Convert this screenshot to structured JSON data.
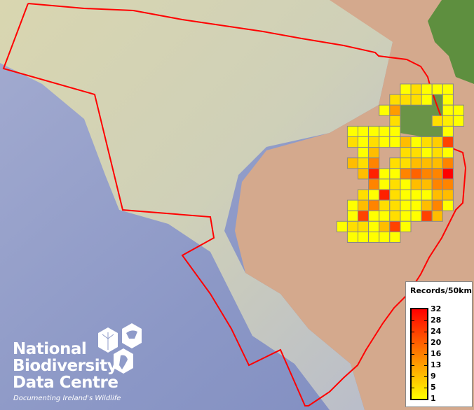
{
  "map": {
    "colors": {
      "ocean_deep": "#8f9bc9",
      "shelf": "#d9d6b4",
      "land": "#d4a98d",
      "scotland": "#5e8f3f",
      "boundary": "#ff0000",
      "grid_border": "#888888",
      "low": "#ffff00",
      "high": "#ff0000"
    },
    "grid_records": [
      [
        0,
        0,
        0,
        0,
        0,
        0,
        1,
        5,
        1,
        1,
        1,
        0
      ],
      [
        0,
        0,
        0,
        0,
        0,
        5,
        5,
        5,
        1,
        0,
        1,
        0
      ],
      [
        0,
        0,
        0,
        0,
        1,
        13,
        0,
        0,
        0,
        0,
        1,
        1
      ],
      [
        0,
        0,
        0,
        0,
        0,
        5,
        0,
        0,
        0,
        5,
        3,
        1
      ],
      [
        0,
        1,
        1,
        1,
        1,
        1,
        0,
        0,
        0,
        0,
        1,
        0
      ],
      [
        0,
        5,
        1,
        5,
        1,
        1,
        9,
        1,
        5,
        7,
        24,
        0
      ],
      [
        0,
        0,
        1,
        9,
        0,
        0,
        5,
        5,
        1,
        5,
        1,
        0
      ],
      [
        0,
        9,
        5,
        16,
        0,
        5,
        5,
        9,
        9,
        9,
        16,
        0
      ],
      [
        0,
        0,
        9,
        28,
        1,
        1,
        16,
        20,
        16,
        16,
        32,
        0
      ],
      [
        0,
        0,
        0,
        16,
        1,
        5,
        1,
        9,
        9,
        16,
        16,
        0
      ],
      [
        0,
        0,
        5,
        1,
        28,
        5,
        1,
        1,
        1,
        9,
        9,
        0
      ],
      [
        0,
        1,
        9,
        16,
        5,
        5,
        1,
        1,
        9,
        16,
        1,
        0
      ],
      [
        0,
        1,
        24,
        1,
        1,
        5,
        1,
        1,
        24,
        9,
        0,
        0
      ],
      [
        1,
        5,
        5,
        1,
        9,
        24,
        1,
        0,
        0,
        0,
        0,
        0
      ],
      [
        0,
        1,
        1,
        1,
        1,
        1,
        0,
        0,
        0,
        0,
        0,
        0
      ]
    ]
  },
  "legend": {
    "title": "Records/50km",
    "labels": [
      "32",
      "28",
      "24",
      "20",
      "16",
      "13",
      "9",
      "5",
      "1"
    ],
    "min": 1,
    "max": 32
  },
  "logo": {
    "line1": "National",
    "line2": "Biodiversity",
    "line3": "Data Centre",
    "tagline": "Documenting Ireland's Wildlife"
  }
}
